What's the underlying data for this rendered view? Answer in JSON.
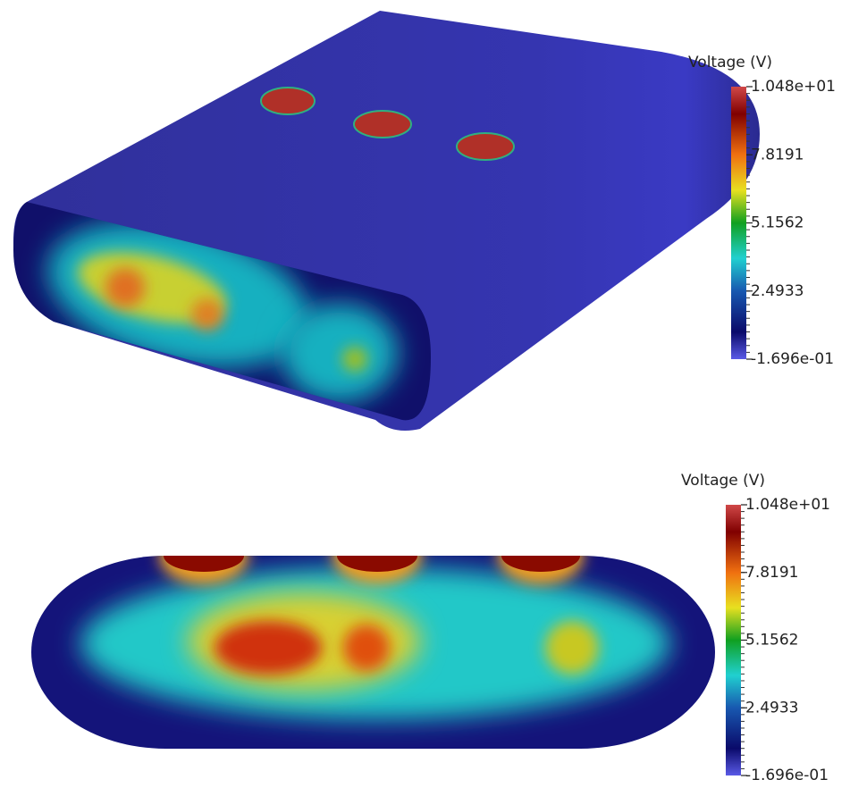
{
  "views": [
    {
      "colorbar": {
        "title": "Voltage (V)",
        "labels": [
          "1.048e+01",
          "7.8191",
          "5.1562",
          "2.4933",
          "-1.696e-01"
        ]
      }
    },
    {
      "colorbar": {
        "title": "Voltage (V)",
        "labels": [
          "1.048e+01",
          "7.8191",
          "5.1562",
          "2.4933",
          "-1.696e-01"
        ]
      }
    }
  ]
}
